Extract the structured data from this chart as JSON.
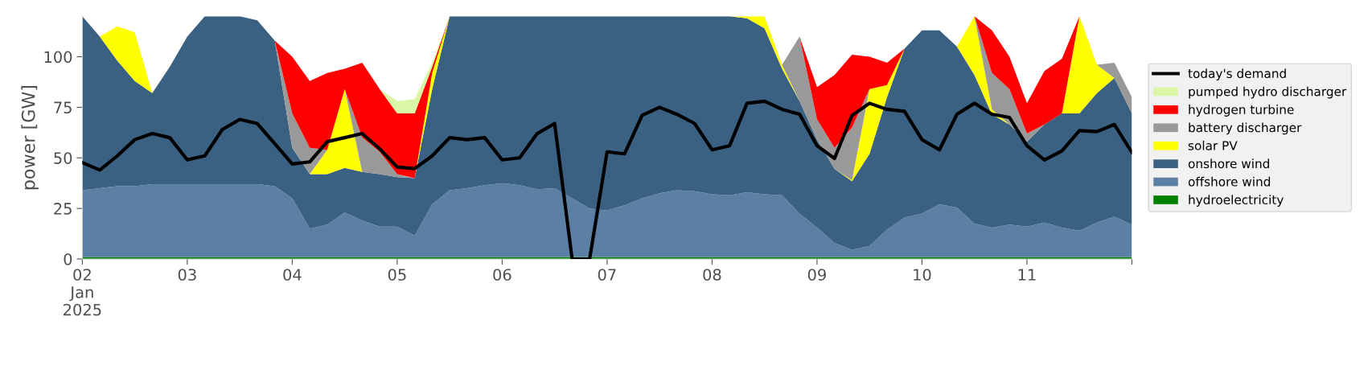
{
  "chart_data": {
    "type": "area",
    "stacked": true,
    "ylabel": "power [GW]",
    "legend": "right",
    "ylim": [
      0,
      120
    ],
    "yticks": [
      0,
      25,
      50,
      75,
      100
    ],
    "xlim": [
      "2025-01-02",
      "2025-01-12"
    ],
    "xticks": [
      {
        "value": "2025-01-02",
        "label": "02\nJan\n2025"
      },
      {
        "value": "2025-01-03",
        "label": "03"
      },
      {
        "value": "2025-01-04",
        "label": "04"
      },
      {
        "value": "2025-01-05",
        "label": "05"
      },
      {
        "value": "2025-01-06",
        "label": "06"
      },
      {
        "value": "2025-01-07",
        "label": "07"
      },
      {
        "value": "2025-01-08",
        "label": "08"
      },
      {
        "value": "2025-01-09",
        "label": "09"
      },
      {
        "value": "2025-01-10",
        "label": "10"
      },
      {
        "value": "2025-01-11",
        "label": "11"
      },
      {
        "value": "2025-01-12",
        "label": null
      }
    ],
    "x": [
      "2025-01-02T00:00",
      "2025-01-02T04:00",
      "2025-01-02T08:00",
      "2025-01-02T12:00",
      "2025-01-02T16:00",
      "2025-01-02T20:00",
      "2025-01-03T00:00",
      "2025-01-03T04:00",
      "2025-01-03T08:00",
      "2025-01-03T12:00",
      "2025-01-03T16:00",
      "2025-01-03T20:00",
      "2025-01-04T00:00",
      "2025-01-04T04:00",
      "2025-01-04T08:00",
      "2025-01-04T12:00",
      "2025-01-04T16:00",
      "2025-01-04T20:00",
      "2025-01-05T00:00",
      "2025-01-05T04:00",
      "2025-01-05T08:00",
      "2025-01-05T12:00",
      "2025-01-05T16:00",
      "2025-01-05T20:00",
      "2025-01-06T00:00",
      "2025-01-06T04:00",
      "2025-01-06T08:00",
      "2025-01-06T12:00",
      "2025-01-06T16:00",
      "2025-01-06T20:00",
      "2025-01-07T00:00",
      "2025-01-07T04:00",
      "2025-01-07T08:00",
      "2025-01-07T12:00",
      "2025-01-07T16:00",
      "2025-01-07T20:00",
      "2025-01-08T00:00",
      "2025-01-08T04:00",
      "2025-01-08T08:00",
      "2025-01-08T12:00",
      "2025-01-08T16:00",
      "2025-01-08T20:00",
      "2025-01-09T00:00",
      "2025-01-09T04:00",
      "2025-01-09T08:00",
      "2025-01-09T12:00",
      "2025-01-09T16:00",
      "2025-01-09T20:00",
      "2025-01-10T00:00",
      "2025-01-10T04:00",
      "2025-01-10T08:00",
      "2025-01-10T12:00",
      "2025-01-10T16:00",
      "2025-01-10T20:00",
      "2025-01-11T00:00",
      "2025-01-11T04:00",
      "2025-01-11T08:00",
      "2025-01-11T12:00",
      "2025-01-11T16:00",
      "2025-01-11T20:00",
      "2025-01-12T00:00"
    ],
    "series": [
      {
        "name": "hydroelectricity",
        "color": "#008000",
        "values": [
          1,
          1,
          1,
          1,
          1,
          1,
          1,
          1,
          1,
          1,
          1,
          1,
          1,
          1,
          1,
          1,
          1,
          1,
          1,
          1,
          1,
          1,
          1,
          1,
          1,
          1,
          1,
          1,
          1,
          1,
          1,
          1,
          1,
          1,
          1,
          1,
          1,
          1,
          1,
          1,
          1,
          1,
          1,
          1,
          1,
          1,
          1,
          1,
          1,
          1,
          1,
          1,
          1,
          1,
          1,
          1,
          1,
          1,
          1,
          1,
          1
        ]
      },
      {
        "name": "offshore wind",
        "color": "#5b80a3",
        "values": [
          33,
          34,
          35,
          35,
          36,
          36,
          36,
          36,
          36,
          36,
          36,
          35,
          29,
          14,
          16,
          22,
          18,
          15,
          15,
          10.5,
          26,
          33,
          34,
          35.5,
          36.5,
          35.5,
          33.5,
          34,
          29,
          24,
          23,
          25.5,
          29,
          31.5,
          33,
          32.5,
          31,
          30.5,
          32,
          31,
          30.5,
          21.5,
          14.5,
          7,
          3.5,
          5.5,
          13.5,
          19.5,
          21.5,
          26,
          24.5,
          16.5,
          14.5,
          16,
          15,
          17,
          14.5,
          13,
          17,
          20,
          16
        ]
      },
      {
        "name": "onshore wind",
        "color": "#3b6182",
        "values": [
          86,
          75,
          62,
          52,
          45,
          58,
          73,
          83,
          83,
          83,
          81,
          72,
          25,
          27,
          25,
          22,
          24,
          26,
          24.5,
          28.5,
          57,
          86,
          85,
          83.5,
          82.5,
          83.5,
          85.5,
          85,
          90,
          95,
          96,
          93.5,
          90,
          87.5,
          86,
          86.5,
          88,
          88.5,
          86,
          82,
          62.5,
          55.5,
          43.5,
          36.5,
          34,
          45.5,
          65.5,
          83.5,
          90.5,
          86,
          79.5,
          73.5,
          56,
          49.5,
          42,
          48.5,
          56.5,
          58,
          64,
          68.5,
          55
        ]
      },
      {
        "name": "solar PV",
        "color": "#ffff00",
        "values": [
          0,
          0,
          17,
          24,
          0,
          0,
          0,
          0,
          0,
          0,
          0,
          0,
          0,
          0,
          12,
          39,
          0,
          0,
          0,
          0,
          8,
          0,
          0,
          0,
          0,
          0,
          0,
          0,
          0,
          0,
          0,
          0,
          0,
          0,
          0,
          0,
          0,
          0,
          1,
          6,
          2,
          0,
          0,
          0,
          0.5,
          32,
          6,
          0,
          0,
          0,
          0,
          29,
          2.5,
          0,
          0,
          0,
          0,
          48,
          14,
          0,
          0
        ]
      },
      {
        "name": "battery discharger",
        "color": "#999999",
        "values": [
          0,
          0,
          0,
          0,
          0,
          0,
          0,
          0,
          0,
          0,
          0,
          0,
          17,
          13,
          0,
          0,
          17,
          11,
          1.5,
          0,
          0,
          0,
          0,
          0,
          0,
          0,
          0,
          0,
          0,
          0,
          0,
          0,
          0,
          0,
          0,
          0,
          0,
          0,
          0,
          0,
          0,
          32,
          10,
          10.5,
          26,
          0,
          0,
          0,
          0,
          0,
          0,
          0,
          18,
          17.5,
          4,
          0,
          0,
          0,
          0,
          7.5,
          8
        ]
      },
      {
        "name": "hydrogen turbine",
        "color": "#ff0000",
        "values": [
          0,
          0,
          0,
          0,
          0,
          0,
          0,
          0,
          0,
          0,
          0,
          0,
          28,
          33,
          38,
          10,
          37,
          31,
          30,
          32,
          3,
          0,
          0,
          0,
          0,
          0,
          0,
          0,
          0,
          0,
          0,
          0,
          0,
          0,
          0,
          0,
          0,
          0,
          0,
          0,
          0,
          0,
          16,
          36,
          36,
          16,
          11,
          0,
          0,
          0,
          0,
          0,
          21,
          16,
          15,
          26.5,
          27,
          0,
          0,
          0,
          0
        ]
      },
      {
        "name": "pumped hydro discharger",
        "color": "#d9f7a5",
        "values": [
          0,
          0,
          0,
          0,
          0,
          0,
          0,
          0,
          0,
          0,
          0,
          0,
          0,
          0,
          0,
          0,
          0,
          0,
          6,
          7,
          2,
          0,
          0,
          0,
          0,
          0,
          0,
          0,
          0,
          0,
          0,
          0,
          0,
          0,
          0,
          0,
          0,
          0,
          0,
          0,
          0,
          0,
          0,
          0,
          0,
          0,
          0,
          0,
          0,
          0,
          0,
          0,
          0,
          0,
          0,
          0,
          0,
          0,
          0,
          0,
          0
        ]
      },
      {
        "name": "today's demand",
        "type": "line",
        "color": "#000000",
        "values": [
          47.7,
          44,
          51,
          59,
          62,
          60,
          49,
          51,
          64,
          69,
          67,
          57,
          47,
          48,
          58,
          60,
          62,
          54.5,
          45.5,
          44.7,
          51,
          60,
          59,
          60,
          49,
          50,
          62,
          67,
          0,
          0,
          53,
          52,
          71,
          75,
          71.5,
          67,
          54,
          56,
          77,
          78,
          74,
          71.6,
          56,
          49.7,
          71,
          77,
          74,
          73,
          59,
          54,
          71.6,
          77,
          71.6,
          70,
          56,
          49,
          53.4,
          63.5,
          63,
          66.5,
          52.7
        ]
      }
    ]
  }
}
